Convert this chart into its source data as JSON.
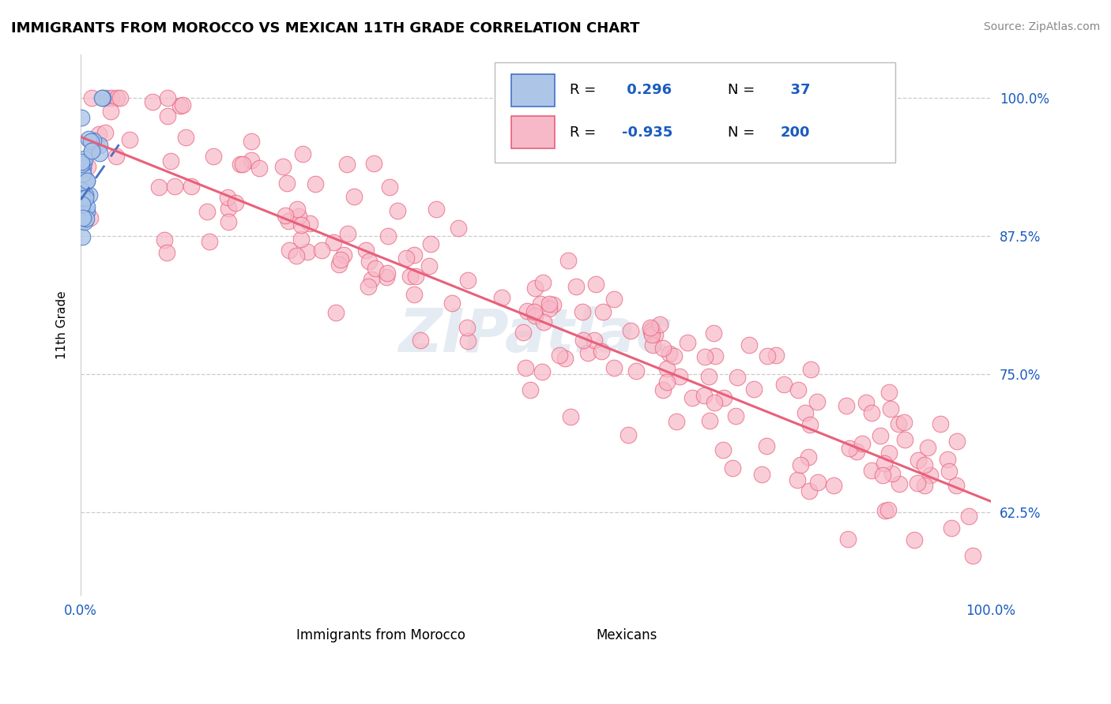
{
  "title": "IMMIGRANTS FROM MOROCCO VS MEXICAN 11TH GRADE CORRELATION CHART",
  "source_text": "Source: ZipAtlas.com",
  "ylabel": "11th Grade",
  "morocco_R": 0.296,
  "morocco_N": 37,
  "mexican_R": -0.935,
  "mexican_N": 200,
  "morocco_color": "#adc6e8",
  "mexican_color": "#f7b8c8",
  "morocco_line_color": "#4472c4",
  "mexican_line_color": "#e8607a",
  "legend_R_color": "#1a5bbf",
  "title_fontsize": 13,
  "watermark_text": "ZIPatlас",
  "xlim": [
    0.0,
    1.0
  ],
  "ylim": [
    0.55,
    1.04
  ],
  "ytick_values": [
    1.0,
    0.875,
    0.75,
    0.625
  ],
  "ytick_labels": [
    "100.0%",
    "87.5%",
    "75.0%",
    "62.5%"
  ],
  "morocco_line": {
    "x0": 0.0,
    "x1": 0.042,
    "y0": 0.908,
    "y1": 0.958
  },
  "mexican_line": {
    "x0": 0.0,
    "x1": 1.0,
    "y0": 0.965,
    "y1": 0.635
  }
}
